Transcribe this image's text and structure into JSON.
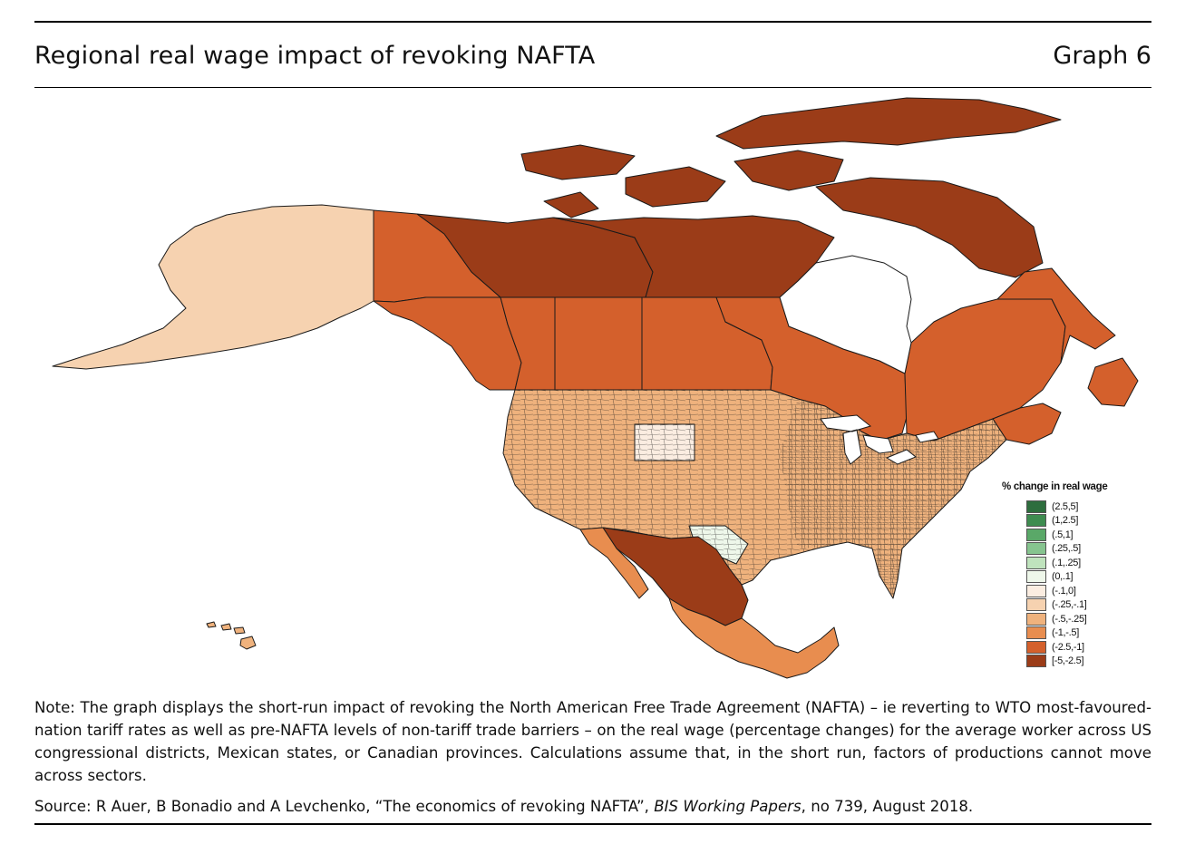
{
  "header": {
    "title": "Regional real wage impact of revoking NAFTA",
    "graph_label": "Graph 6"
  },
  "colors": {
    "nodata": "#ffffff",
    "border": "#1a1a1a",
    "bins": [
      "#2e6e3e",
      "#3e8c50",
      "#5aa868",
      "#86c48f",
      "#bfe3bd",
      "#eef7ea",
      "#fbede1",
      "#f6d2b0",
      "#efb27d",
      "#e88d4f",
      "#d4602c",
      "#9b3c18"
    ]
  },
  "regions": [
    {
      "name": "Alaska",
      "bin": "(-.25,-.1]"
    },
    {
      "name": "Yukon",
      "bin": "(-2.5,-1]"
    },
    {
      "name": "Northwest Territories",
      "bin": "[-5,-2.5]"
    },
    {
      "name": "Nunavut",
      "bin": "[-5,-2.5]"
    },
    {
      "name": "Arctic Islands",
      "bin": "[-5,-2.5]"
    },
    {
      "name": "British Columbia",
      "bin": "(-2.5,-1]"
    },
    {
      "name": "Alberta",
      "bin": "(-2.5,-1]"
    },
    {
      "name": "Saskatchewan",
      "bin": "(-2.5,-1]"
    },
    {
      "name": "Manitoba",
      "bin": "(-2.5,-1]"
    },
    {
      "name": "Ontario",
      "bin": "(-2.5,-1]"
    },
    {
      "name": "Quebec",
      "bin": "(-2.5,-1]"
    },
    {
      "name": "Newfoundland and Labrador",
      "bin": "(-2.5,-1]"
    },
    {
      "name": "Maritime provinces",
      "bin": "(-2.5,-1]"
    },
    {
      "name": "Wyoming",
      "bin": "(-.1,0]"
    },
    {
      "name": "Texas (west)",
      "bin": "(0,.1]"
    },
    {
      "name": "Mexico (north-east)",
      "bin": "[-5,-2.5]"
    },
    {
      "name": "Mexico (south)",
      "bin": "(-1,-.5]"
    },
    {
      "name": "Hawaii",
      "bin": "(-.5,-.25]"
    }
  ],
  "legend": {
    "title": "% change in real wage",
    "items": [
      {
        "label": "(2.5,5]",
        "color": "#2e6e3e"
      },
      {
        "label": "(1,2.5]",
        "color": "#3e8c50"
      },
      {
        "label": "(.5,1]",
        "color": "#5aa868"
      },
      {
        "label": "(.25,.5]",
        "color": "#86c48f"
      },
      {
        "label": "(.1,.25]",
        "color": "#bfe3bd"
      },
      {
        "label": "(0,.1]",
        "color": "#eef7ea"
      },
      {
        "label": "(-.1,0]",
        "color": "#fbede1"
      },
      {
        "label": "(-.25,-.1]",
        "color": "#f6d2b0"
      },
      {
        "label": "(-.5,-.25]",
        "color": "#efb27d"
      },
      {
        "label": "(-1,-.5]",
        "color": "#e88d4f"
      },
      {
        "label": "(-2.5,-1]",
        "color": "#d4602c"
      },
      {
        "label": "[-5,-2.5]",
        "color": "#9b3c18"
      }
    ]
  },
  "note": "Note: The graph displays the short-run impact of revoking the North American Free Trade Agreement (NAFTA) – ie reverting to WTO most-favoured-nation tariff rates as well as pre-NAFTA levels of non-tariff trade barriers – on the real wage (percentage changes) for the average worker across US congressional districts, Mexican states, or Canadian provinces. Calculations assume that, in the short run, factors of productions cannot move across sectors.",
  "source": {
    "prefix": "Source: R Auer, B Bonadio and A Levchenko, “The economics of revoking NAFTA”,",
    "publication": "BIS Working Papers",
    "suffix": ", no 739, August 2018."
  }
}
